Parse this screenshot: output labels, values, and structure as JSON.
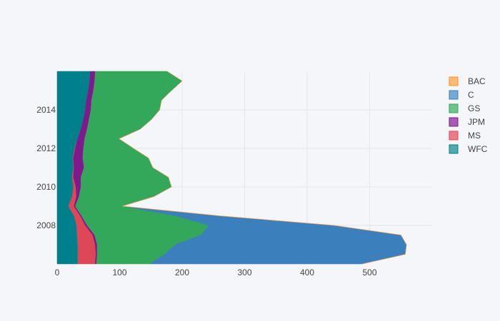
{
  "chart_data": {
    "type": "area",
    "orientation": "horizontal-stacked",
    "title": "",
    "xlabel": "",
    "ylabel": "",
    "xlim": [
      0,
      600
    ],
    "ylim": [
      2006.0,
      2016.0
    ],
    "x_ticks": [
      0,
      100,
      200,
      300,
      400,
      500
    ],
    "y_ticks": [
      2008,
      2010,
      2012,
      2014
    ],
    "grid": true,
    "legend_position": "right",
    "y": [
      2006.0,
      2006.5,
      2007.0,
      2007.5,
      2008.0,
      2008.5,
      2009.0,
      2009.5,
      2010.0,
      2010.5,
      2011.0,
      2011.5,
      2012.0,
      2012.5,
      2013.0,
      2013.5,
      2014.0,
      2014.5,
      2015.0,
      2015.5,
      2016.0
    ],
    "series": [
      {
        "name": "WFC",
        "color": "#00808c",
        "values": [
          33,
          33,
          33,
          32,
          31,
          27,
          18,
          24,
          26,
          24,
          26,
          25,
          28,
          33,
          38,
          42,
          45,
          47,
          50,
          52,
          53
        ]
      },
      {
        "name": "MS",
        "color": "#dd4757",
        "values": [
          28,
          29,
          28,
          25,
          14,
          10,
          9,
          7,
          4,
          2,
          1,
          1,
          1,
          0,
          0,
          0,
          0,
          0,
          0,
          0,
          0
        ]
      },
      {
        "name": "JPM",
        "color": "#7f1a8c",
        "values": [
          2,
          2,
          3,
          3,
          3,
          2,
          2,
          4,
          8,
          12,
          16,
          15,
          13,
          11,
          10,
          9,
          9,
          8,
          8,
          8,
          8
        ]
      },
      {
        "name": "GS",
        "color": "#33a85a",
        "values": [
          85,
          108,
          125,
          170,
          195,
          150,
          75,
          120,
          145,
          140,
          110,
          105,
          80,
          55,
          85,
          100,
          110,
          112,
          125,
          140,
          115
        ]
      },
      {
        "name": "C",
        "color": "#3c7fbd",
        "values": [
          340,
          385,
          370,
          320,
          200,
          70,
          0,
          0,
          0,
          0,
          0,
          0,
          0,
          0,
          0,
          0,
          0,
          0,
          0,
          0,
          0
        ]
      },
      {
        "name": "BAC",
        "color": "#ff9c3a",
        "values": [
          0,
          0,
          0,
          0,
          0,
          0,
          0,
          0,
          0,
          0,
          0,
          0,
          0,
          0,
          0,
          0,
          0,
          0,
          0,
          0,
          0
        ]
      }
    ],
    "legend": [
      {
        "name": "BAC",
        "color": "#ffb978",
        "border": "#ff8f1e"
      },
      {
        "name": "C",
        "color": "#74a8d6",
        "border": "#3c7fbd"
      },
      {
        "name": "GS",
        "color": "#6fc48c",
        "border": "#33a85a"
      },
      {
        "name": "JPM",
        "color": "#a85bb3",
        "border": "#7f1a8c"
      },
      {
        "name": "MS",
        "color": "#ec7c88",
        "border": "#dd4757"
      },
      {
        "name": "WFC",
        "color": "#4fa9ad",
        "border": "#00808c"
      }
    ]
  }
}
